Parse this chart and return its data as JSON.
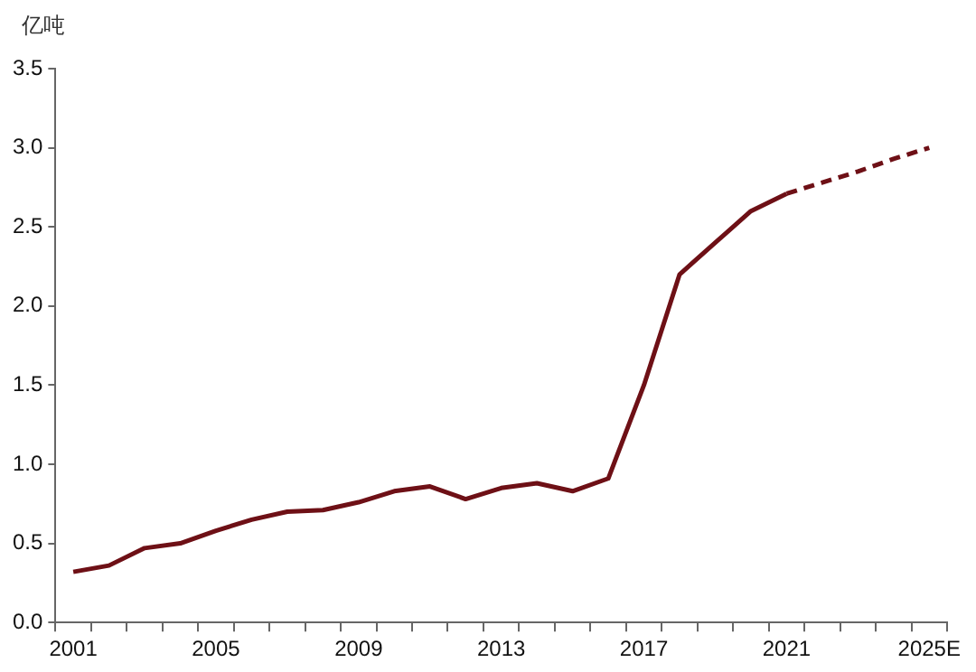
{
  "chart_data": {
    "type": "line",
    "ylabel": "亿吨",
    "categories": [
      "2001",
      null,
      null,
      null,
      "2005",
      null,
      null,
      null,
      "2009",
      null,
      null,
      null,
      "2013",
      null,
      null,
      null,
      "2017",
      null,
      null,
      null,
      "2021",
      null,
      null,
      null,
      "2025E"
    ],
    "series": [
      {
        "color": "#6e1016",
        "line_style": "solid",
        "values": [
          0.32,
          0.36,
          0.47,
          0.5,
          0.58,
          0.65,
          0.7,
          0.71,
          0.76,
          0.83,
          0.86,
          0.78,
          0.85,
          0.88,
          0.83,
          0.91,
          1.5,
          2.2,
          2.4,
          2.6,
          2.71,
          null,
          null,
          null,
          null
        ]
      },
      {
        "color": "#6e1016",
        "line_style": "dashed",
        "values": [
          null,
          null,
          null,
          null,
          null,
          null,
          null,
          null,
          null,
          null,
          null,
          null,
          null,
          null,
          null,
          null,
          null,
          null,
          null,
          null,
          2.71,
          2.78,
          2.85,
          2.93,
          3.0
        ]
      }
    ],
    "ylim": [
      0,
      3.5
    ],
    "yticks": [
      {
        "value": 0,
        "label": "0.0"
      },
      0.5,
      {
        "value": 1,
        "label": "1.0"
      },
      1.5,
      {
        "value": 2,
        "label": "2.0"
      },
      2.5,
      {
        "value": 3,
        "label": "3.0"
      },
      3.5
    ],
    "grid": false,
    "legend": false,
    "marker": "none"
  }
}
